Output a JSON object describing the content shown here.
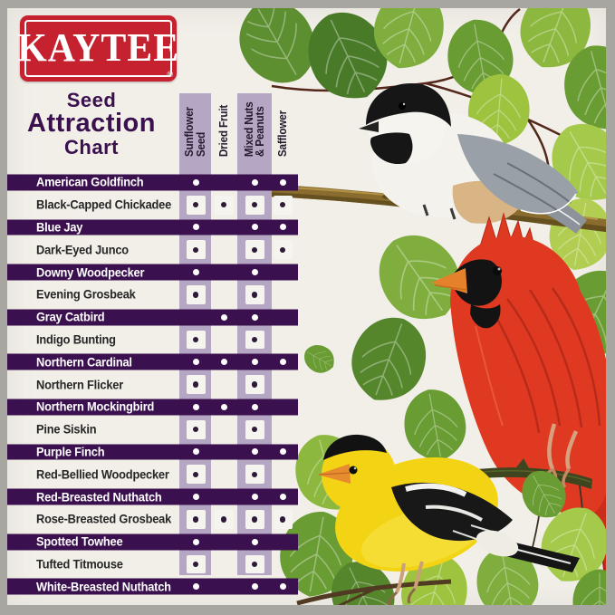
{
  "brand": {
    "logo_text": "KAYTEE",
    "registered_mark": "®"
  },
  "title": {
    "line1": "Seed",
    "line2": "Attraction",
    "line3": "Chart"
  },
  "chart_data": {
    "type": "table",
    "title": "Seed Attraction Chart",
    "columns": [
      "Sunflower Seed",
      "Dried Fruit",
      "Mixed Nuts & Peanuts",
      "Safflower"
    ],
    "rows": [
      {
        "bird": "American Goldfinch",
        "emphasized": true,
        "attracted_to": [
          true,
          false,
          true,
          true
        ]
      },
      {
        "bird": "Black-Capped Chickadee",
        "emphasized": false,
        "attracted_to": [
          true,
          true,
          true,
          true
        ]
      },
      {
        "bird": "Blue Jay",
        "emphasized": true,
        "attracted_to": [
          true,
          false,
          true,
          true
        ]
      },
      {
        "bird": "Dark-Eyed Junco",
        "emphasized": false,
        "attracted_to": [
          true,
          false,
          true,
          true
        ]
      },
      {
        "bird": "Downy Woodpecker",
        "emphasized": true,
        "attracted_to": [
          true,
          false,
          true,
          false
        ]
      },
      {
        "bird": "Evening Grosbeak",
        "emphasized": false,
        "attracted_to": [
          true,
          false,
          true,
          false
        ]
      },
      {
        "bird": "Gray Catbird",
        "emphasized": true,
        "attracted_to": [
          false,
          true,
          true,
          false
        ]
      },
      {
        "bird": "Indigo Bunting",
        "emphasized": false,
        "attracted_to": [
          true,
          false,
          true,
          false
        ]
      },
      {
        "bird": "Northern Cardinal",
        "emphasized": true,
        "attracted_to": [
          true,
          true,
          true,
          true
        ]
      },
      {
        "bird": "Northern Flicker",
        "emphasized": false,
        "attracted_to": [
          true,
          false,
          true,
          false
        ]
      },
      {
        "bird": "Northern Mockingbird",
        "emphasized": true,
        "attracted_to": [
          true,
          true,
          true,
          false
        ]
      },
      {
        "bird": "Pine Siskin",
        "emphasized": false,
        "attracted_to": [
          true,
          false,
          true,
          false
        ]
      },
      {
        "bird": "Purple Finch",
        "emphasized": true,
        "attracted_to": [
          true,
          false,
          true,
          true
        ]
      },
      {
        "bird": "Red-Bellied Woodpecker",
        "emphasized": false,
        "attracted_to": [
          true,
          false,
          true,
          false
        ]
      },
      {
        "bird": "Red-Breasted Nuthatch",
        "emphasized": true,
        "attracted_to": [
          true,
          false,
          true,
          true
        ]
      },
      {
        "bird": "Rose-Breasted Grosbeak",
        "emphasized": false,
        "attracted_to": [
          true,
          true,
          true,
          true
        ]
      },
      {
        "bird": "Spotted Towhee",
        "emphasized": true,
        "attracted_to": [
          true,
          false,
          true,
          false
        ]
      },
      {
        "bird": "Tufted Titmouse",
        "emphasized": false,
        "attracted_to": [
          true,
          false,
          true,
          false
        ]
      },
      {
        "bird": "White-Breasted Nuthatch",
        "emphasized": true,
        "attracted_to": [
          true,
          false,
          true,
          true
        ]
      }
    ]
  },
  "table": {
    "column_header_lines": [
      [
        "Sunflower",
        "Seed"
      ],
      [
        "Dried Fruit"
      ],
      [
        "Mixed Nuts",
        "& Peanuts"
      ],
      [
        "Safflower"
      ]
    ]
  },
  "artwork": {
    "birds": [
      "Black-Capped Chickadee",
      "Northern Cardinal",
      "American Goldfinch"
    ],
    "scenery": [
      "green leaves",
      "tree branches"
    ]
  },
  "colors": {
    "brand_red": "#c5212f",
    "deep_purple": "#3b104e",
    "lavender": "#b5a6c3",
    "paper": "#f1efe8",
    "frame_gray": "#a7a6a1",
    "leaf_green": "#6a9c34",
    "cardinal_red": "#df3a21",
    "goldfinch_yellow": "#f3d414"
  }
}
